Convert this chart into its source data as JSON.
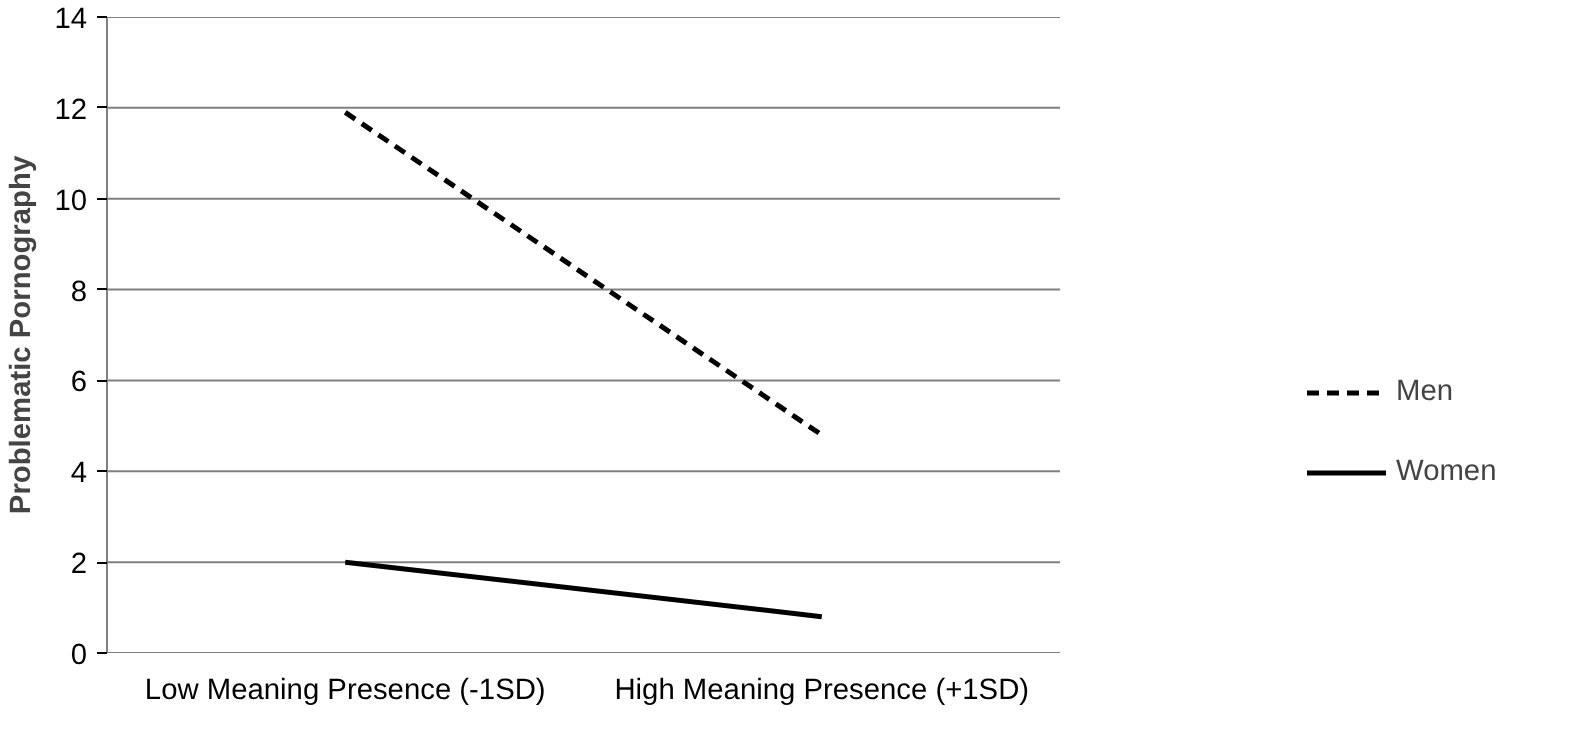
{
  "chart_data": {
    "type": "line",
    "ylabel": "Problematic Pornography",
    "categories": [
      "Low Meaning Presence (-1SD)",
      "High Meaning Presence (+1SD)"
    ],
    "series": [
      {
        "name": "Men",
        "color": "#000000",
        "values": [
          11.9,
          4.8
        ],
        "line_style": "dashed"
      },
      {
        "name": "Women",
        "color": "#000000",
        "values": [
          2.0,
          0.8
        ],
        "line_style": "solid"
      }
    ],
    "ylim": [
      0,
      14
    ],
    "yticks": [
      0,
      2,
      4,
      6,
      8,
      10,
      12,
      14
    ],
    "grid": "y",
    "legend": "right",
    "marker": "none"
  }
}
